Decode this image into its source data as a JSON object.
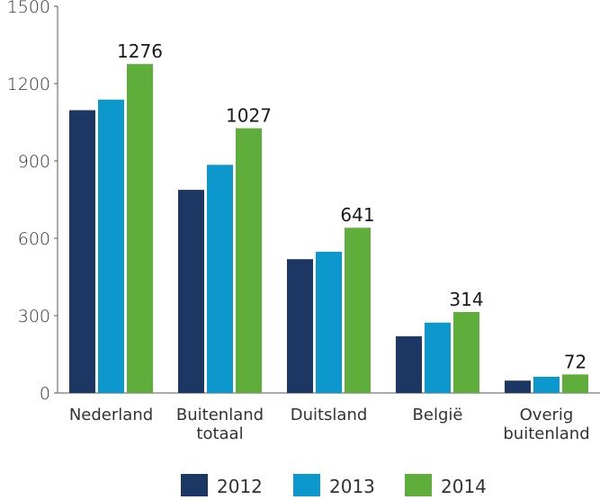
{
  "chart_data": {
    "type": "bar",
    "categories": [
      [
        "Nederland"
      ],
      [
        "Buitenland",
        "totaal"
      ],
      [
        "Duitsland"
      ],
      [
        "België"
      ],
      [
        "Overig",
        "buitenland"
      ]
    ],
    "series": [
      {
        "name": "2012",
        "color": "#1d3764",
        "values": [
          1097,
          788,
          519,
          220,
          48
        ]
      },
      {
        "name": "2013",
        "color": "#0c98cd",
        "values": [
          1138,
          885,
          548,
          273,
          63
        ]
      },
      {
        "name": "2014",
        "color": "#5fad3a",
        "values": [
          1276,
          1027,
          641,
          314,
          72
        ]
      }
    ],
    "data_labels": {
      "series": "2014",
      "values": [
        "1276",
        "1027",
        "641",
        "314",
        "72"
      ]
    },
    "yticks": [
      "0",
      "300",
      "600",
      "900",
      "1200",
      "1500"
    ],
    "ylim": [
      0,
      1500
    ],
    "grid": false,
    "legend": "bottom",
    "title": "",
    "xlabel": "",
    "ylabel": ""
  }
}
